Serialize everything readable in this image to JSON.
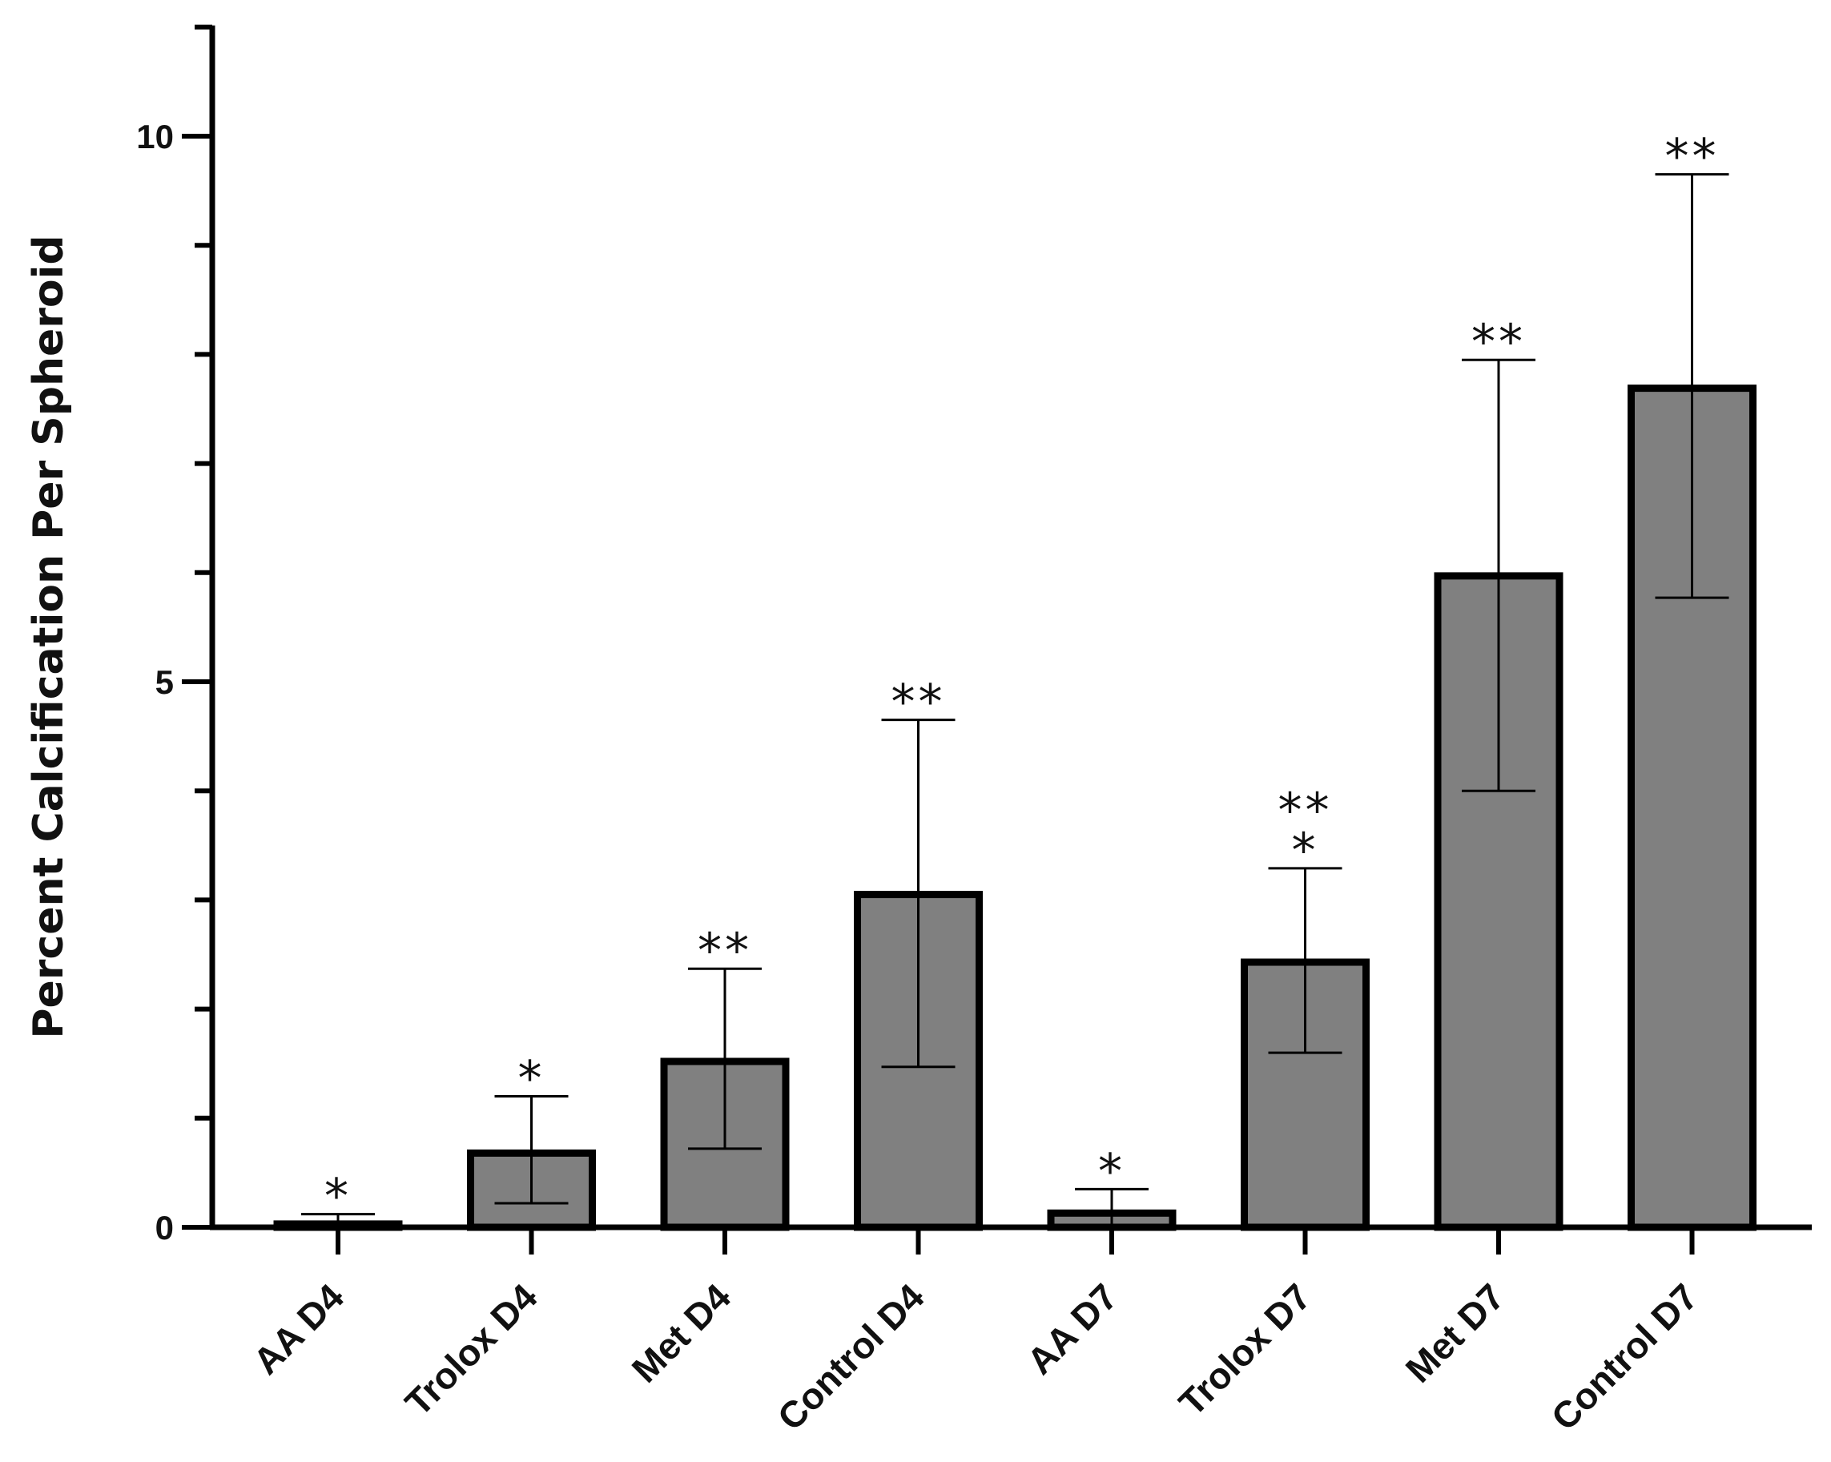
{
  "chart_data": {
    "type": "bar",
    "title": "",
    "xlabel": "",
    "ylabel": "Percent Calcification Per Spheroid",
    "ylim": [
      0,
      11
    ],
    "yticks_major": [
      0,
      5,
      10
    ],
    "yticks_minor_step": 1,
    "grid": false,
    "bar_color": "#808080",
    "bar_edge_color": "#000000",
    "categories": [
      "AA D4",
      "Trolox D4",
      "Met D4",
      "Control D4",
      "AA D7",
      "Trolox D7",
      "Met D7",
      "Control D7"
    ],
    "values": [
      0.03,
      0.68,
      1.52,
      3.05,
      0.13,
      2.43,
      5.97,
      7.69
    ],
    "error_upper": [
      0.12,
      1.2,
      2.37,
      4.65,
      0.35,
      3.29,
      7.95,
      9.65
    ],
    "error_lower": [
      0.0,
      0.22,
      0.72,
      1.47,
      0.0,
      1.6,
      4.0,
      5.77
    ],
    "significance": [
      [
        "*"
      ],
      [
        "*"
      ],
      [
        "**"
      ],
      [
        "**"
      ],
      [
        "*"
      ],
      [
        "**",
        "*"
      ],
      [
        "**"
      ],
      [
        "**"
      ]
    ]
  }
}
